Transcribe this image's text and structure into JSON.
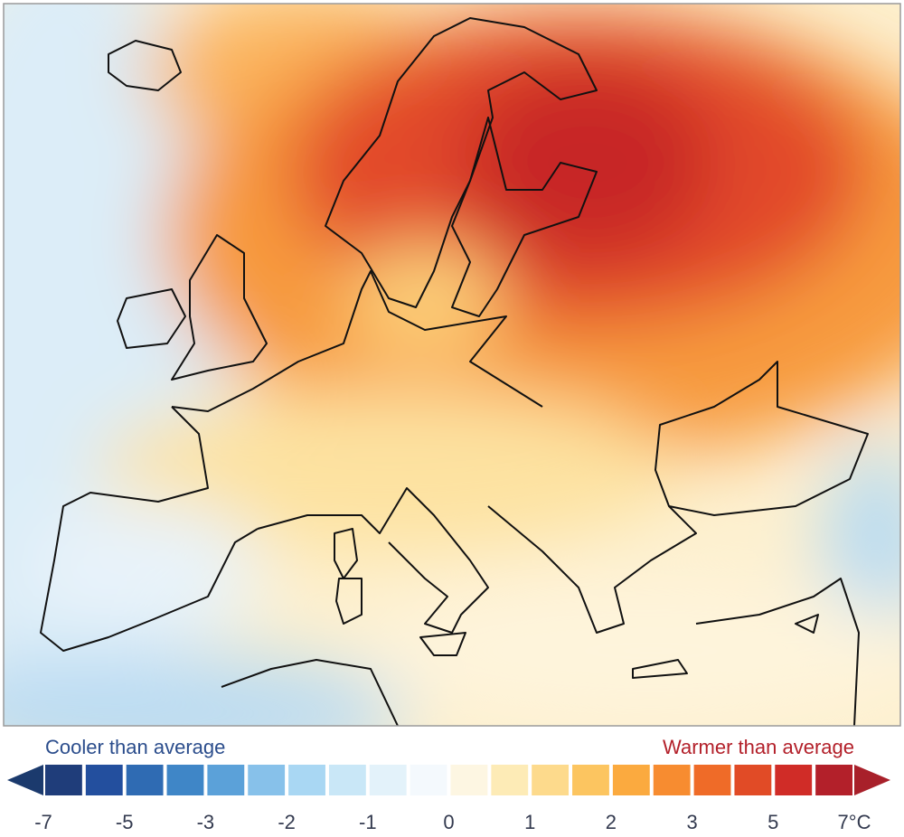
{
  "legend": {
    "left_label": "Cooler than average",
    "right_label": "Warmer than average",
    "bounds": [
      -7,
      -6,
      -5,
      -4,
      -3,
      -2.5,
      -2,
      -1.5,
      -1,
      -0.5,
      0,
      0.5,
      1,
      1.5,
      2,
      2.5,
      3,
      4,
      5,
      6,
      7
    ],
    "colors": [
      "#1f3d7a",
      "#234f9e",
      "#2f6bb3",
      "#3f86c7",
      "#5ba1d9",
      "#87c1ea",
      "#a9d7f3",
      "#c9e7f7",
      "#e3f2fa",
      "#f4f9fd",
      "#fdf6e2",
      "#fdebb6",
      "#fdda8c",
      "#fcc560",
      "#fbaa3f",
      "#f78c30",
      "#ef6b28",
      "#e14b26",
      "#d02c27",
      "#b3202a"
    ],
    "under_color": "#1b3a6d",
    "over_color": "#a8202a",
    "ticks": [
      -7,
      -5,
      -3,
      -2,
      -1,
      0,
      1,
      2,
      3,
      5,
      {
        "value": 7,
        "label": "7°C"
      }
    ]
  }
}
